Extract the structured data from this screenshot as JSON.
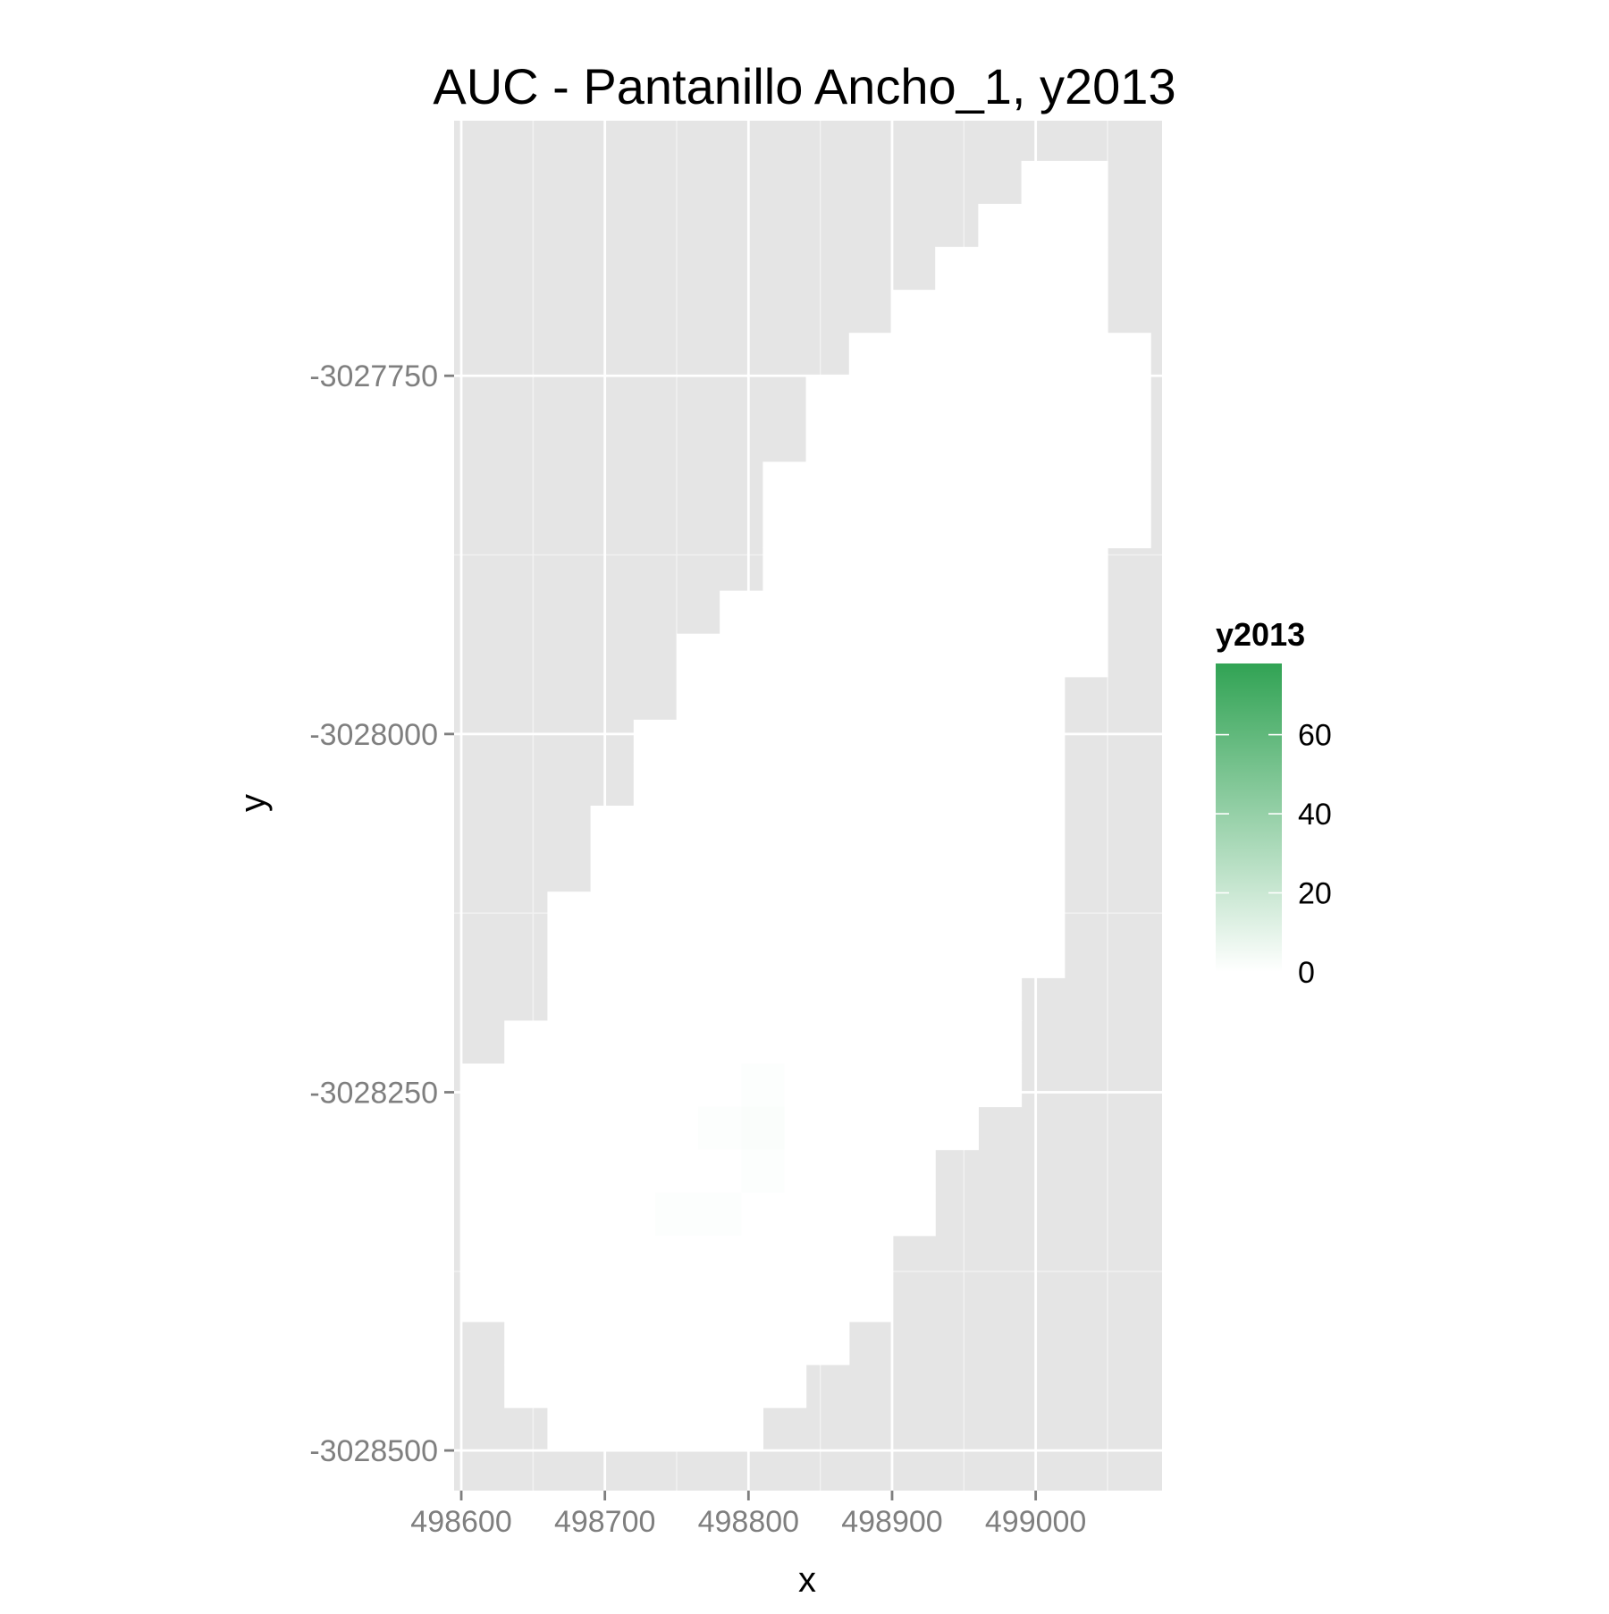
{
  "chart_data": {
    "type": "heatmap",
    "title": "AUC - Pantanillo Ancho_1, y2013",
    "xlabel": "x",
    "ylabel": "y",
    "xlim": [
      498595,
      499088
    ],
    "ylim": [
      -3028528,
      -3027572
    ],
    "x_major_ticks": [
      498600,
      498700,
      498800,
      498900,
      499000
    ],
    "x_tick_labels": [
      "498600",
      "498700",
      "498800",
      "498900",
      "499000"
    ],
    "y_major_ticks": [
      -3027750,
      -3028000,
      -3028250,
      -3028500
    ],
    "y_tick_labels": [
      "-3027750",
      "-3028000",
      "-3028250",
      "-3028500"
    ],
    "grid": true,
    "panel_background": "#e5e5e5",
    "cell_size": 30,
    "legend": {
      "title": "y2013",
      "placement": "right",
      "min": 0,
      "max": 78,
      "breaks": [
        0,
        20,
        40,
        60
      ],
      "break_labels": [
        "0",
        "20",
        "40",
        "60"
      ],
      "low_color": "#ffffff",
      "high_color": "#31a354"
    },
    "raster_rows": [
      {
        "y": -3027615,
        "x_start": 499005,
        "x_end": 499035,
        "value": 0
      },
      {
        "y": -3027645,
        "x_start": 498975,
        "x_end": 499035,
        "value": 0
      },
      {
        "y": -3027675,
        "x_start": 498945,
        "x_end": 499035,
        "value": 0
      },
      {
        "y": -3027705,
        "x_start": 498915,
        "x_end": 499035,
        "value": 0
      },
      {
        "y": -3027735,
        "x_start": 498885,
        "x_end": 499065,
        "value": 0
      },
      {
        "y": -3027765,
        "x_start": 498855,
        "x_end": 499065,
        "value": 0
      },
      {
        "y": -3027795,
        "x_start": 498855,
        "x_end": 499065,
        "value": 0
      },
      {
        "y": -3027825,
        "x_start": 498825,
        "x_end": 499065,
        "value": 0
      },
      {
        "y": -3027855,
        "x_start": 498825,
        "x_end": 499065,
        "value": 0
      },
      {
        "y": -3027885,
        "x_start": 498825,
        "x_end": 499035,
        "value": 0
      },
      {
        "y": -3027915,
        "x_start": 498795,
        "x_end": 499035,
        "value": 0
      },
      {
        "y": -3027945,
        "x_start": 498765,
        "x_end": 499035,
        "value": 0
      },
      {
        "y": -3027975,
        "x_start": 498765,
        "x_end": 499005,
        "value": 0
      },
      {
        "y": -3028005,
        "x_start": 498735,
        "x_end": 499005,
        "value": 0
      },
      {
        "y": -3028035,
        "x_start": 498735,
        "x_end": 499005,
        "value": 0
      },
      {
        "y": -3028065,
        "x_start": 498705,
        "x_end": 499005,
        "value": 0
      },
      {
        "y": -3028095,
        "x_start": 498705,
        "x_end": 499005,
        "value": 0
      },
      {
        "y": -3028125,
        "x_start": 498675,
        "x_end": 499005,
        "value": 0
      },
      {
        "y": -3028155,
        "x_start": 498675,
        "x_end": 499005,
        "value": 0
      },
      {
        "y": -3028185,
        "x_start": 498675,
        "x_end": 498975,
        "value": 0
      },
      {
        "y": -3028215,
        "x_start": 498645,
        "x_end": 498975,
        "value": 0
      },
      {
        "y": -3028245,
        "x_start": 498615,
        "x_end": 498975,
        "value": 0
      },
      {
        "y": -3028275,
        "x_start": 498615,
        "x_end": 498945,
        "value": 0
      },
      {
        "y": -3028305,
        "x_start": 498615,
        "x_end": 498915,
        "value": 0
      },
      {
        "y": -3028335,
        "x_start": 498615,
        "x_end": 498915,
        "value": 0
      },
      {
        "y": -3028365,
        "x_start": 498615,
        "x_end": 498885,
        "value": 0
      },
      {
        "y": -3028395,
        "x_start": 498615,
        "x_end": 498885,
        "value": 0
      },
      {
        "y": -3028425,
        "x_start": 498645,
        "x_end": 498855,
        "value": 0
      },
      {
        "y": -3028455,
        "x_start": 498645,
        "x_end": 498825,
        "value": 0
      },
      {
        "y": -3028485,
        "x_start": 498675,
        "x_end": 498795,
        "value": 0
      }
    ],
    "nonzero_cells": [
      {
        "x": 498810,
        "y": -3028245,
        "value": 1
      },
      {
        "x": 498780,
        "y": -3028275,
        "value": 1
      },
      {
        "x": 498810,
        "y": -3028275,
        "value": 2
      },
      {
        "x": 498810,
        "y": -3028305,
        "value": 1
      },
      {
        "x": 498750,
        "y": -3028335,
        "value": 1
      },
      {
        "x": 498780,
        "y": -3028335,
        "value": 1
      }
    ]
  }
}
